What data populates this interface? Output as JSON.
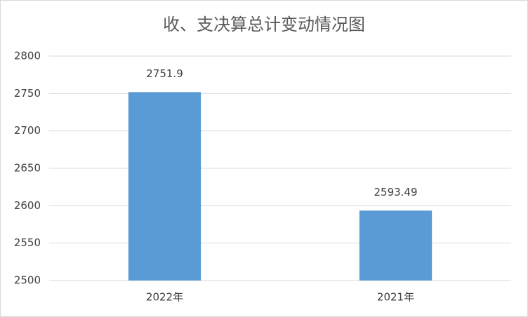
{
  "chart_data": {
    "type": "bar",
    "title": "收、支决算总计变动情况图",
    "categories": [
      "2022年",
      "2021年"
    ],
    "values": [
      2751.9,
      2593.49
    ],
    "color": "#5b9bd5",
    "ylim": [
      2500,
      2800
    ],
    "yticks": [
      2500,
      2550,
      2600,
      2650,
      2700,
      2750,
      2800
    ],
    "grid": true
  }
}
